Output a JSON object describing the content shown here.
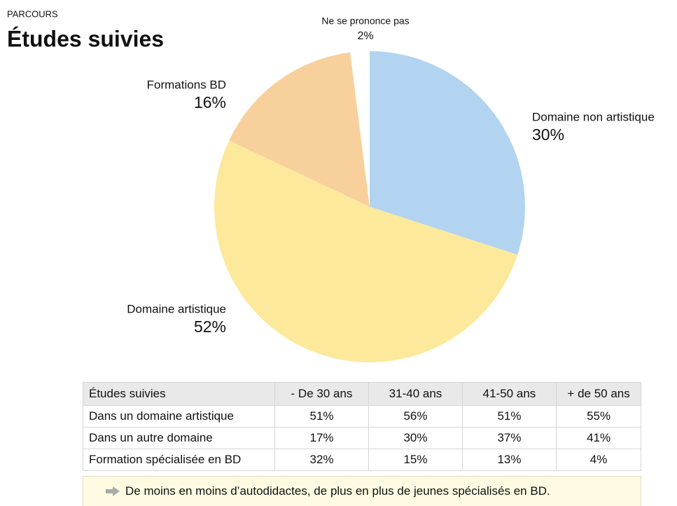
{
  "header": {
    "kicker": "PARCOURS"
  },
  "chart_data": {
    "type": "pie",
    "title": "Études suivies",
    "categories": [
      "Domaine non artistique",
      "Domaine artistique",
      "Formations BD",
      "Ne se prononce pas"
    ],
    "values": [
      30,
      52,
      16,
      2
    ],
    "value_labels": [
      "30%",
      "52%",
      "16%",
      "2%"
    ],
    "colors": [
      "#b3d4f0",
      "#fde99c",
      "#f8d09c",
      "#ffffff"
    ]
  },
  "table": {
    "columns": [
      "Études suivies",
      "- De 30 ans",
      "31-40 ans",
      "41-50 ans",
      "+ de 50 ans"
    ],
    "rows": [
      [
        "Dans un domaine artistique",
        "51%",
        "56%",
        "51%",
        "55%"
      ],
      [
        "Dans un autre domaine",
        "17%",
        "30%",
        "37%",
        "41%"
      ],
      [
        "Formation spécialisée en BD",
        "32%",
        "15%",
        "13%",
        "4%"
      ]
    ]
  },
  "note": "De moins en moins d’autodidactes, de plus en plus de jeunes spécialisés en BD."
}
